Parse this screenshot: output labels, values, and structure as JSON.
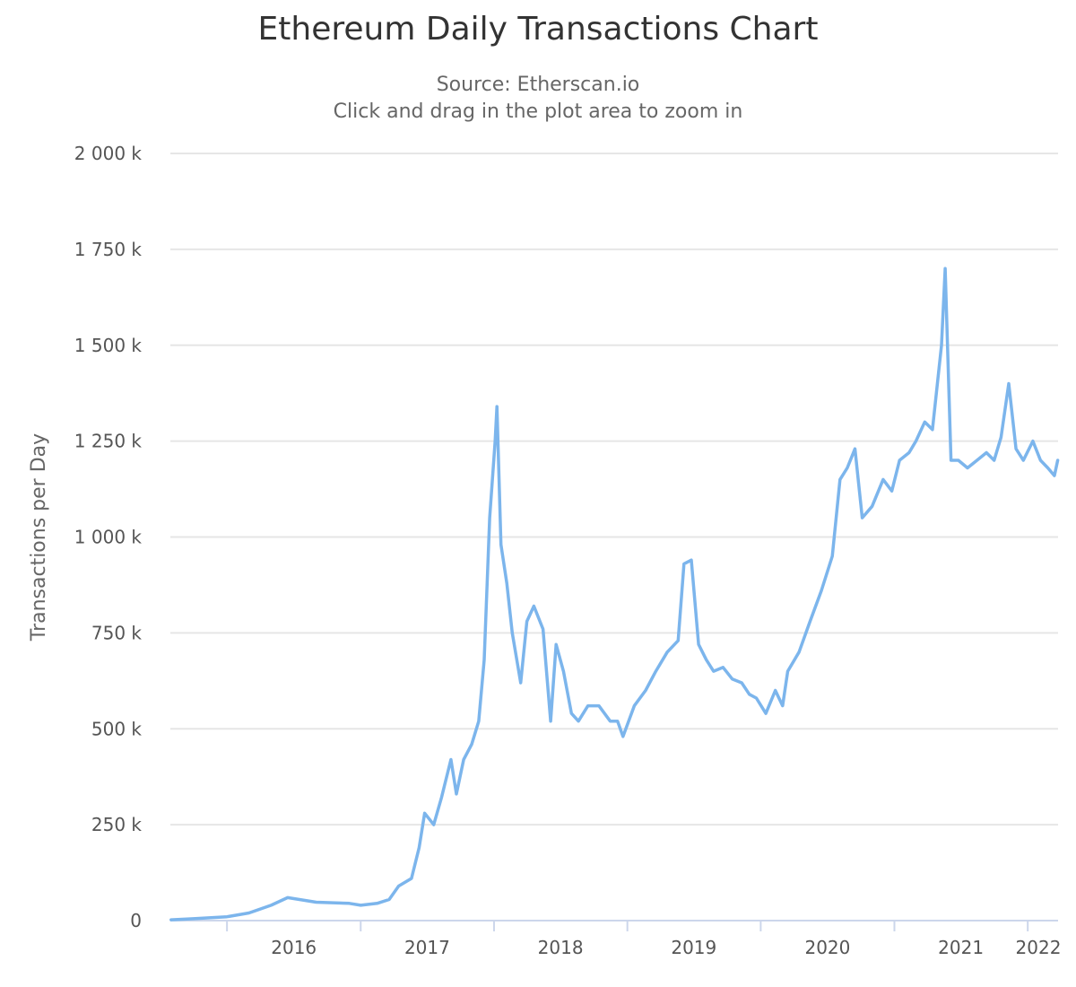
{
  "colors": {
    "series": "#7cb5ec",
    "grid": "#e6e6e6",
    "axis_line": "#ccd6eb"
  },
  "chart_data": {
    "type": "line",
    "title": "Ethereum Daily Transactions Chart",
    "subtitle": "Source: Etherscan.io",
    "subtitle2": "Click and drag in the plot area to zoom in",
    "xlabel": "",
    "ylabel": "Transactions per Day",
    "xlim": [
      "2015-07-30",
      "2022-03-25"
    ],
    "ylim": [
      0,
      2000000
    ],
    "x_ticks": [
      "2016",
      "2017",
      "2018",
      "2019",
      "2020",
      "2021",
      "2022"
    ],
    "y_ticks": [
      {
        "value": 0,
        "label": "0"
      },
      {
        "value": 250000,
        "label": "250 k"
      },
      {
        "value": 500000,
        "label": "500 k"
      },
      {
        "value": 750000,
        "label": "750 k"
      },
      {
        "value": 1000000,
        "label": "1 000 k"
      },
      {
        "value": 1250000,
        "label": "1 250 k"
      },
      {
        "value": 1500000,
        "label": "1 500 k"
      },
      {
        "value": 1750000,
        "label": "1 750 k"
      },
      {
        "value": 2000000,
        "label": "2 000 k"
      }
    ],
    "grid": true,
    "legend": false,
    "series": [
      {
        "x": [
          "2015-08-01",
          "2015-10-01",
          "2016-01-01",
          "2016-03-01",
          "2016-05-01",
          "2016-06-15",
          "2016-09-01",
          "2016-12-01",
          "2017-01-01",
          "2017-02-15",
          "2017-03-20",
          "2017-04-15",
          "2017-05-20",
          "2017-06-10",
          "2017-06-25",
          "2017-07-20",
          "2017-08-10",
          "2017-09-05",
          "2017-09-20",
          "2017-10-10",
          "2017-11-01",
          "2017-11-20",
          "2017-12-05",
          "2017-12-20",
          "2018-01-04",
          "2018-01-09",
          "2018-01-20",
          "2018-02-05",
          "2018-02-20",
          "2018-03-15",
          "2018-04-01",
          "2018-04-20",
          "2018-05-15",
          "2018-06-05",
          "2018-06-20",
          "2018-07-10",
          "2018-08-01",
          "2018-08-20",
          "2018-09-15",
          "2018-10-15",
          "2018-11-15",
          "2018-12-05",
          "2018-12-20",
          "2019-01-20",
          "2019-02-20",
          "2019-03-20",
          "2019-04-20",
          "2019-05-20",
          "2019-06-05",
          "2019-06-25",
          "2019-07-15",
          "2019-08-05",
          "2019-08-25",
          "2019-09-20",
          "2019-10-15",
          "2019-11-10",
          "2019-12-01",
          "2019-12-20",
          "2020-01-15",
          "2020-02-10",
          "2020-03-01",
          "2020-03-15",
          "2020-04-15",
          "2020-05-15",
          "2020-06-15",
          "2020-07-15",
          "2020-08-05",
          "2020-08-25",
          "2020-09-15",
          "2020-10-05",
          "2020-11-01",
          "2020-12-01",
          "2020-12-25",
          "2021-01-15",
          "2021-02-10",
          "2021-03-01",
          "2021-03-25",
          "2021-04-15",
          "2021-05-10",
          "2021-05-20",
          "2021-06-05",
          "2021-06-25",
          "2021-07-20",
          "2021-08-15",
          "2021-09-10",
          "2021-10-01",
          "2021-10-20",
          "2021-11-10",
          "2021-11-30",
          "2021-12-20",
          "2022-01-15",
          "2022-02-05",
          "2022-02-25",
          "2022-03-15",
          "2022-03-24"
        ],
        "y": [
          2000,
          5000,
          10000,
          20000,
          40000,
          60000,
          48000,
          45000,
          40000,
          45000,
          55000,
          90000,
          110000,
          190000,
          280000,
          250000,
          320000,
          420000,
          330000,
          420000,
          460000,
          520000,
          680000,
          1050000,
          1250000,
          1340000,
          980000,
          880000,
          750000,
          620000,
          780000,
          820000,
          760000,
          520000,
          720000,
          650000,
          540000,
          520000,
          560000,
          560000,
          520000,
          520000,
          480000,
          560000,
          600000,
          650000,
          700000,
          730000,
          930000,
          940000,
          720000,
          680000,
          650000,
          660000,
          630000,
          620000,
          590000,
          580000,
          540000,
          600000,
          560000,
          650000,
          700000,
          780000,
          860000,
          950000,
          1150000,
          1180000,
          1230000,
          1050000,
          1080000,
          1150000,
          1120000,
          1200000,
          1220000,
          1250000,
          1300000,
          1280000,
          1500000,
          1700000,
          1200000,
          1200000,
          1180000,
          1200000,
          1220000,
          1200000,
          1260000,
          1400000,
          1230000,
          1200000,
          1250000,
          1200000,
          1180000,
          1160000,
          1200000
        ]
      }
    ]
  }
}
